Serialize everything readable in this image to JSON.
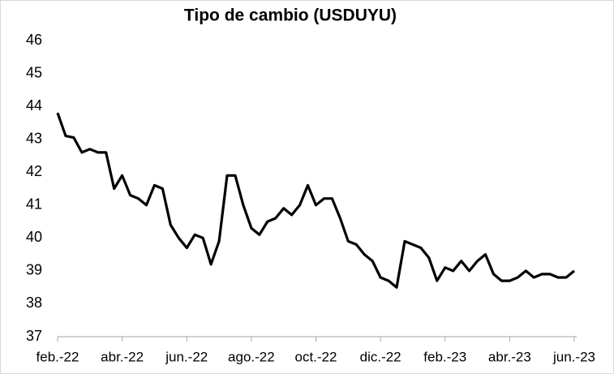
{
  "chart_data": {
    "type": "line",
    "title": "Tipo de cambio (USDUYU)",
    "categories": [
      "feb.-22",
      null,
      null,
      null,
      null,
      null,
      null,
      null,
      "abr.-22",
      null,
      null,
      null,
      null,
      null,
      null,
      null,
      "jun.-22",
      null,
      null,
      null,
      null,
      null,
      null,
      null,
      "ago.-22",
      null,
      null,
      null,
      null,
      null,
      null,
      null,
      "oct.-22",
      null,
      null,
      null,
      null,
      null,
      null,
      null,
      "dic.-22",
      null,
      null,
      null,
      null,
      null,
      null,
      null,
      "feb.-23",
      null,
      null,
      null,
      null,
      null,
      null,
      null,
      "abr.-23",
      null,
      null,
      null,
      null,
      null,
      null,
      null,
      "jun.-23"
    ],
    "series": [
      {
        "name": "USDUYU",
        "color": "#000000",
        "values": [
          43.8,
          43.1,
          43.05,
          42.6,
          42.7,
          42.6,
          42.6,
          41.5,
          41.9,
          41.3,
          41.2,
          41.0,
          41.6,
          41.5,
          40.4,
          40.0,
          39.7,
          40.1,
          40.0,
          39.2,
          39.9,
          41.9,
          41.9,
          41.0,
          40.3,
          40.1,
          40.5,
          40.6,
          40.9,
          40.7,
          41.0,
          41.6,
          41.0,
          41.2,
          41.2,
          40.6,
          39.9,
          39.8,
          39.5,
          39.3,
          38.8,
          38.7,
          38.5,
          39.9,
          39.8,
          39.7,
          39.4,
          38.7,
          39.1,
          39.0,
          39.3,
          39.0,
          39.3,
          39.5,
          38.9,
          38.7,
          38.7,
          38.8,
          39.0,
          38.8,
          38.9,
          38.9,
          38.8,
          38.8,
          39.0
        ]
      }
    ],
    "ylim": [
      37,
      46
    ],
    "yticks": [
      37,
      38,
      39,
      40,
      41,
      42,
      43,
      44,
      45,
      46
    ],
    "grid": false
  }
}
